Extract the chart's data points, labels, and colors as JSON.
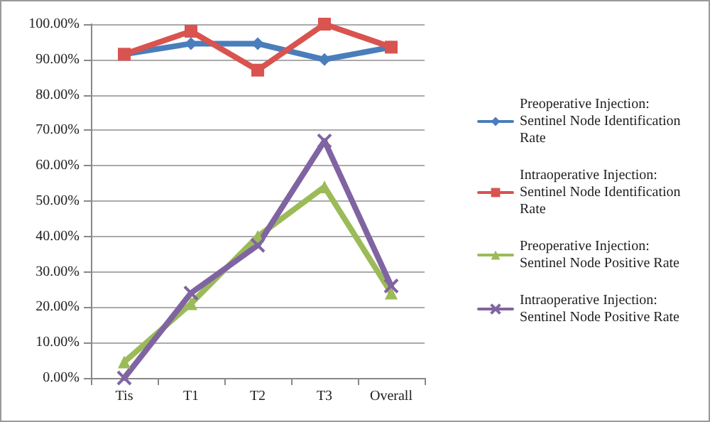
{
  "chart_data": {
    "type": "line",
    "categories": [
      "Tis",
      "T1",
      "T2",
      "T3",
      "Overall"
    ],
    "series": [
      {
        "name": "Preoperative Injection: Sentinel Node Identification Rate",
        "color": "#4a7ebb",
        "marker": "diamond",
        "values": [
          91.5,
          94.5,
          94.5,
          90,
          93.5
        ]
      },
      {
        "name": "Intraoperative Injection: Sentinel Node Identification Rate",
        "color": "#d9534f",
        "marker": "square",
        "values": [
          91.5,
          98,
          87,
          100,
          93.5
        ]
      },
      {
        "name": "Preoperative Injection: Sentinel Node Positive Rate",
        "color": "#9bbb59",
        "marker": "triangle",
        "values": [
          4.5,
          21,
          40,
          54,
          24
        ]
      },
      {
        "name": "Intraoperative Injection: Sentinel Node Positive Rate",
        "color": "#8064a2",
        "marker": "cross",
        "values": [
          0,
          24,
          37.5,
          67,
          26
        ]
      }
    ],
    "ylim": [
      0,
      100
    ],
    "yticks": [
      {
        "value": 0,
        "label": "0.00%"
      },
      {
        "value": 10,
        "label": "10.00%"
      },
      {
        "value": 20,
        "label": "20.00%"
      },
      {
        "value": 30,
        "label": "30.00%"
      },
      {
        "value": 40,
        "label": "40.00%"
      },
      {
        "value": 50,
        "label": "50.00%"
      },
      {
        "value": 60,
        "label": "60.00%"
      },
      {
        "value": 70,
        "label": "70.00%"
      },
      {
        "value": 80,
        "label": "80.00%"
      },
      {
        "value": 90,
        "label": "90.00%"
      },
      {
        "value": 100,
        "label": "100.00%"
      }
    ],
    "grid": "y",
    "legend": "right",
    "line_style": "solid"
  }
}
